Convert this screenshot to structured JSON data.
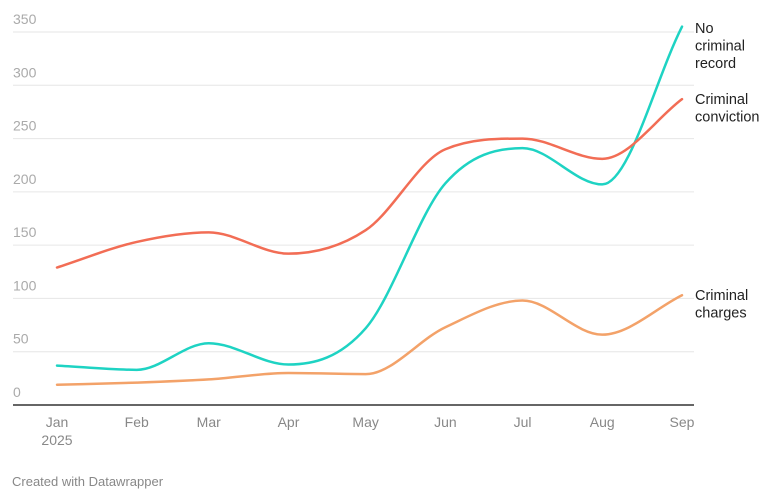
{
  "chart_data": {
    "type": "line",
    "categories": [
      "Jan",
      "Feb",
      "Mar",
      "Apr",
      "May",
      "Jun",
      "Jul",
      "Aug",
      "Sep"
    ],
    "x_sublabel": "2025",
    "x_days": [
      0,
      31,
      59,
      90,
      120,
      151,
      181,
      212,
      243
    ],
    "y_ticks": [
      0,
      50,
      100,
      150,
      200,
      250,
      300,
      350
    ],
    "ylim": [
      0,
      350
    ],
    "grid": true,
    "legend": "direct labels at line ends (right)",
    "series": [
      {
        "name": "No criminal record",
        "label_lines": [
          "No",
          "criminal",
          "record"
        ],
        "color": "#1ed3c3",
        "values": [
          37,
          33,
          58,
          38,
          72,
          208,
          241,
          207,
          355
        ]
      },
      {
        "name": "Criminal conviction",
        "label_lines": [
          "Criminal",
          "conviction"
        ],
        "color": "#f26d55",
        "values": [
          129,
          153,
          162,
          142,
          164,
          240,
          250,
          231,
          287
        ]
      },
      {
        "name": "Criminal charges",
        "label_lines": [
          "Criminal",
          "charges"
        ],
        "color": "#f3a269",
        "values": [
          19,
          21,
          24,
          30,
          29,
          73,
          98,
          66,
          103
        ]
      }
    ]
  },
  "footer": "Created with Datawrapper"
}
